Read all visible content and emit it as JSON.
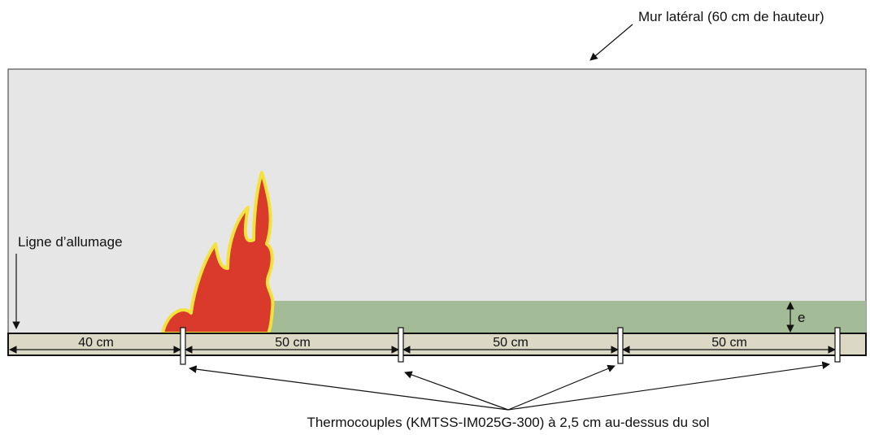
{
  "wall_label": "Mur latéral (60 cm de hauteur)",
  "ignition_label": "Ligne d’allumage",
  "depth_label": "e",
  "segments": [
    "40 cm",
    "50 cm",
    "50 cm",
    "50 cm"
  ],
  "thermocouple_label": "Thermocouples (KMTSS-IM025G-300) à 2,5 cm au-dessus du sol"
}
